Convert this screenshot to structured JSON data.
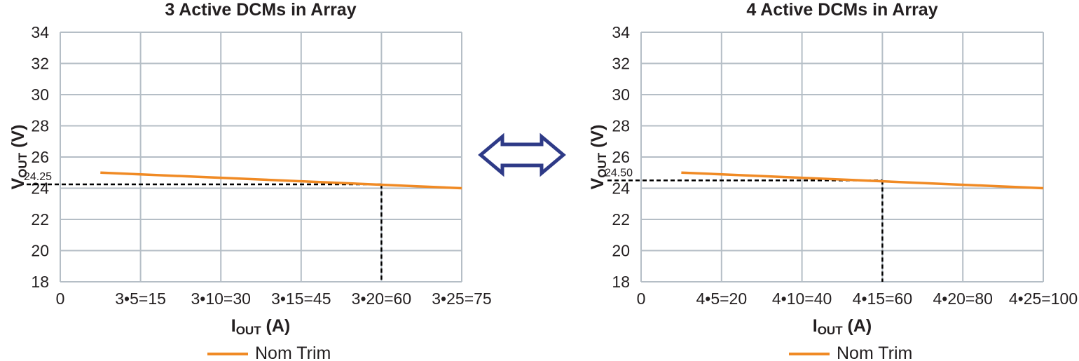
{
  "chart_data": [
    {
      "type": "line",
      "title": "3 Active DCMs in Array",
      "xlabel": {
        "main": "I",
        "sub": "OUT",
        "unit": " (A)"
      },
      "ylabel": {
        "main": "V",
        "sub": "OUT",
        "unit": " (V)"
      },
      "xlim": [
        0,
        75
      ],
      "ylim": [
        18,
        34
      ],
      "x_ticks": [
        0,
        15,
        30,
        45,
        60,
        75
      ],
      "x_tick_labels": [
        "0",
        "3•5=15",
        "3•10=30",
        "3•15=45",
        "3•20=60",
        "3•25=75"
      ],
      "y_ticks": [
        18,
        20,
        22,
        24,
        26,
        28,
        30,
        32,
        34
      ],
      "y_tick_labels": [
        "18",
        "20",
        "22",
        "24",
        "26",
        "28",
        "30",
        "32",
        "34"
      ],
      "grid": true,
      "series": [
        {
          "name": "Nom Trim",
          "color": "#f08a24",
          "x": [
            7.5,
            75
          ],
          "y": [
            25.0,
            24.0
          ]
        }
      ],
      "reference": {
        "x": 60,
        "y": 24.25,
        "label": "24.25"
      },
      "legend": {
        "position": "bottom",
        "label": "Nom Trim"
      }
    },
    {
      "type": "line",
      "title": "4 Active DCMs in Array",
      "xlabel": {
        "main": "I",
        "sub": "OUT",
        "unit": " (A)"
      },
      "ylabel": {
        "main": "V",
        "sub": "OUT",
        "unit": " (V)"
      },
      "xlim": [
        0,
        100
      ],
      "ylim": [
        18,
        34
      ],
      "x_ticks": [
        0,
        20,
        40,
        60,
        80,
        100
      ],
      "x_tick_labels": [
        "0",
        "4•5=20",
        "4•10=40",
        "4•15=60",
        "4•20=80",
        "4•25=100"
      ],
      "y_ticks": [
        18,
        20,
        22,
        24,
        26,
        28,
        30,
        32,
        34
      ],
      "y_tick_labels": [
        "18",
        "20",
        "22",
        "24",
        "26",
        "28",
        "30",
        "32",
        "34"
      ],
      "grid": true,
      "series": [
        {
          "name": "Nom Trim",
          "color": "#f08a24",
          "x": [
            10,
            100
          ],
          "y": [
            25.0,
            24.0
          ]
        }
      ],
      "reference": {
        "x": 60,
        "y": 24.5,
        "label": "24.50"
      },
      "legend": {
        "position": "bottom",
        "label": "Nom Trim"
      }
    }
  ],
  "colors": {
    "grid": "#b5bec6",
    "series": "#f08a24",
    "reference": "#000000",
    "arrow": "#2e3a87",
    "text": "#231f20"
  },
  "icons": {
    "center_arrow": "double-headed-arrow-icon"
  }
}
